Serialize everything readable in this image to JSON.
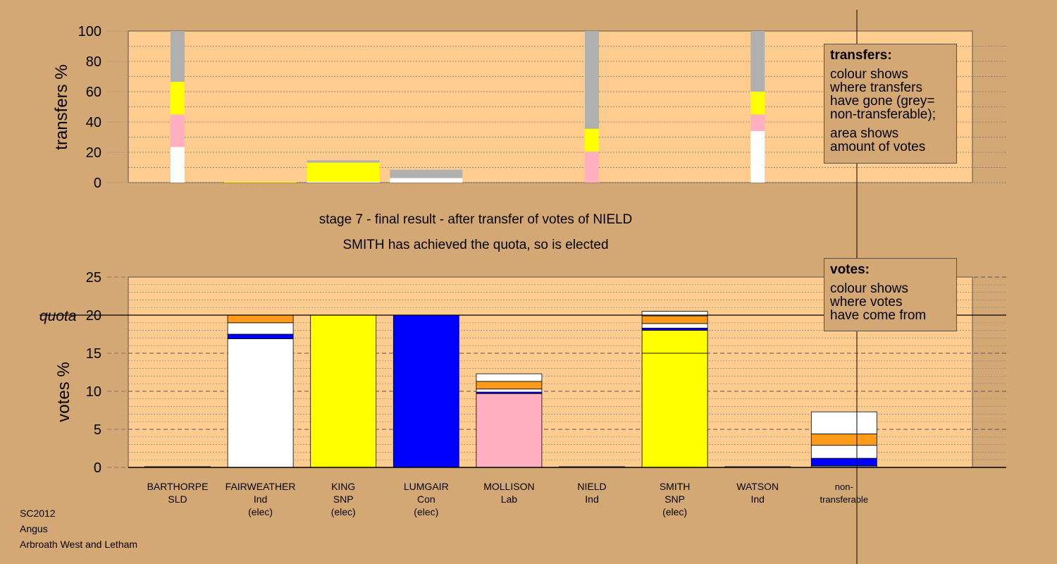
{
  "stage_line": "stage 7 - final result - after transfer of votes of NIELD",
  "elected_line": "SMITH has achieved the quota, so is elected",
  "footer": {
    "election": "SC2012",
    "council": "Angus",
    "ward": "Arbroath West and Letham"
  },
  "transfers_legend": {
    "title": "transfers:",
    "text1": "colour shows\nwhere transfers\nhave gone (grey=\nnon-transferable);",
    "text2": "area shows\namount of votes"
  },
  "votes_legend": {
    "title": "votes:",
    "text1": "colour shows\nwhere votes\nhave come from"
  },
  "colors": {
    "background": "#d4a874",
    "plot": "#ffcc8f",
    "SLD": "#ff9a1a",
    "Ind": "#ffffff",
    "SNP": "#ffff00",
    "Con": "#0000ff",
    "Lab": "#ffb0c0",
    "non_transferable": "#b0b0b0"
  },
  "chart_data": [
    {
      "type": "bar",
      "name": "transfers",
      "ylabel": "transfers %",
      "ylim": [
        0,
        100
      ],
      "yticks": [
        0,
        20,
        40,
        60,
        80,
        100
      ],
      "grid": true,
      "bars": [
        {
          "slot": 0,
          "width": "narrow",
          "segments": [
            {
              "color": "Ind",
              "value": 23.5
            },
            {
              "color": "Lab",
              "value": 21.5
            },
            {
              "color": "SNP",
              "value": 21.5
            },
            {
              "color": "non_transferable",
              "value": 33.5
            }
          ]
        },
        {
          "slot": 1,
          "width": "wide",
          "segments": [
            {
              "color": "SNP",
              "value": 0.5
            }
          ]
        },
        {
          "slot": 2,
          "width": "wide",
          "segments": [
            {
              "color": "Ind",
              "value": 0.6
            },
            {
              "color": "SNP",
              "value": 12.6
            },
            {
              "color": "non_transferable",
              "value": 1.5
            }
          ]
        },
        {
          "slot": 3,
          "width": "wide",
          "segments": [
            {
              "color": "Ind",
              "value": 3
            },
            {
              "color": "non_transferable",
              "value": 5.5
            }
          ]
        },
        {
          "slot": 5,
          "width": "narrow",
          "segments": [
            {
              "color": "Lab",
              "value": 20.5
            },
            {
              "color": "SNP",
              "value": 15
            },
            {
              "color": "non_transferable",
              "value": 64.5
            }
          ]
        },
        {
          "slot": 7,
          "width": "narrow",
          "segments": [
            {
              "color": "Ind",
              "value": 34
            },
            {
              "color": "Lab",
              "value": 11
            },
            {
              "color": "SNP",
              "value": 15
            },
            {
              "color": "non_transferable",
              "value": 40
            }
          ]
        }
      ]
    },
    {
      "type": "bar",
      "name": "votes",
      "ylabel": "votes %",
      "ylim": [
        0,
        25
      ],
      "yticks": [
        0,
        5,
        10,
        15,
        20,
        25
      ],
      "quota": 20,
      "quota_label": "quota",
      "grid": true,
      "categories": [
        {
          "name": "BARTHORPE",
          "party": "SLD",
          "status": ""
        },
        {
          "name": "FAIRWEATHER",
          "party": "Ind",
          "status": "(elec)"
        },
        {
          "name": "KING",
          "party": "SNP",
          "status": "(elec)"
        },
        {
          "name": "LUMGAIR",
          "party": "Con",
          "status": "(elec)"
        },
        {
          "name": "MOLLISON",
          "party": "Lab",
          "status": ""
        },
        {
          "name": "NIELD",
          "party": "Ind",
          "status": ""
        },
        {
          "name": "SMITH",
          "party": "SNP",
          "status": "(elec)"
        },
        {
          "name": "WATSON",
          "party": "Ind",
          "status": ""
        },
        {
          "name": "non-\ntransferable",
          "party": "",
          "status": ""
        }
      ],
      "bars": [
        {
          "slot": 0,
          "segments": [
            {
              "color": "SLD",
              "value": 0.1
            }
          ]
        },
        {
          "slot": 1,
          "segments": [
            {
              "color": "Ind",
              "value": 16.9
            },
            {
              "color": "Con",
              "value": 0.6
            },
            {
              "color": "Ind",
              "value": 1.5
            },
            {
              "color": "SLD",
              "value": 1
            }
          ]
        },
        {
          "slot": 2,
          "segments": [
            {
              "color": "SNP",
              "value": 20
            }
          ]
        },
        {
          "slot": 3,
          "segments": [
            {
              "color": "Con",
              "value": 20
            }
          ]
        },
        {
          "slot": 4,
          "segments": [
            {
              "color": "Lab",
              "value": 9.7
            },
            {
              "color": "Con",
              "value": 0.2
            },
            {
              "color": "Ind",
              "value": 0.4
            },
            {
              "color": "SLD",
              "value": 1
            },
            {
              "color": "Ind",
              "value": 1
            }
          ]
        },
        {
          "slot": 5,
          "segments": [
            {
              "color": "Ind",
              "value": 0.1
            }
          ]
        },
        {
          "slot": 6,
          "segments": [
            {
              "color": "SNP",
              "value": 15
            },
            {
              "color": "SNP",
              "value": 3
            },
            {
              "color": "Con",
              "value": 0.3
            },
            {
              "color": "Ind",
              "value": 0.6
            },
            {
              "color": "SLD",
              "value": 1
            },
            {
              "color": "Ind",
              "value": 0.6
            }
          ]
        },
        {
          "slot": 7,
          "segments": [
            {
              "color": "Ind",
              "value": 0.1
            }
          ]
        },
        {
          "slot": 8,
          "segments": [
            {
              "color": "non_transferable",
              "value": 0.2
            },
            {
              "color": "Con",
              "value": 1
            },
            {
              "color": "Ind",
              "value": 1.7
            },
            {
              "color": "SLD",
              "value": 1.5
            },
            {
              "color": "Ind",
              "value": 2.9
            }
          ]
        }
      ]
    }
  ]
}
